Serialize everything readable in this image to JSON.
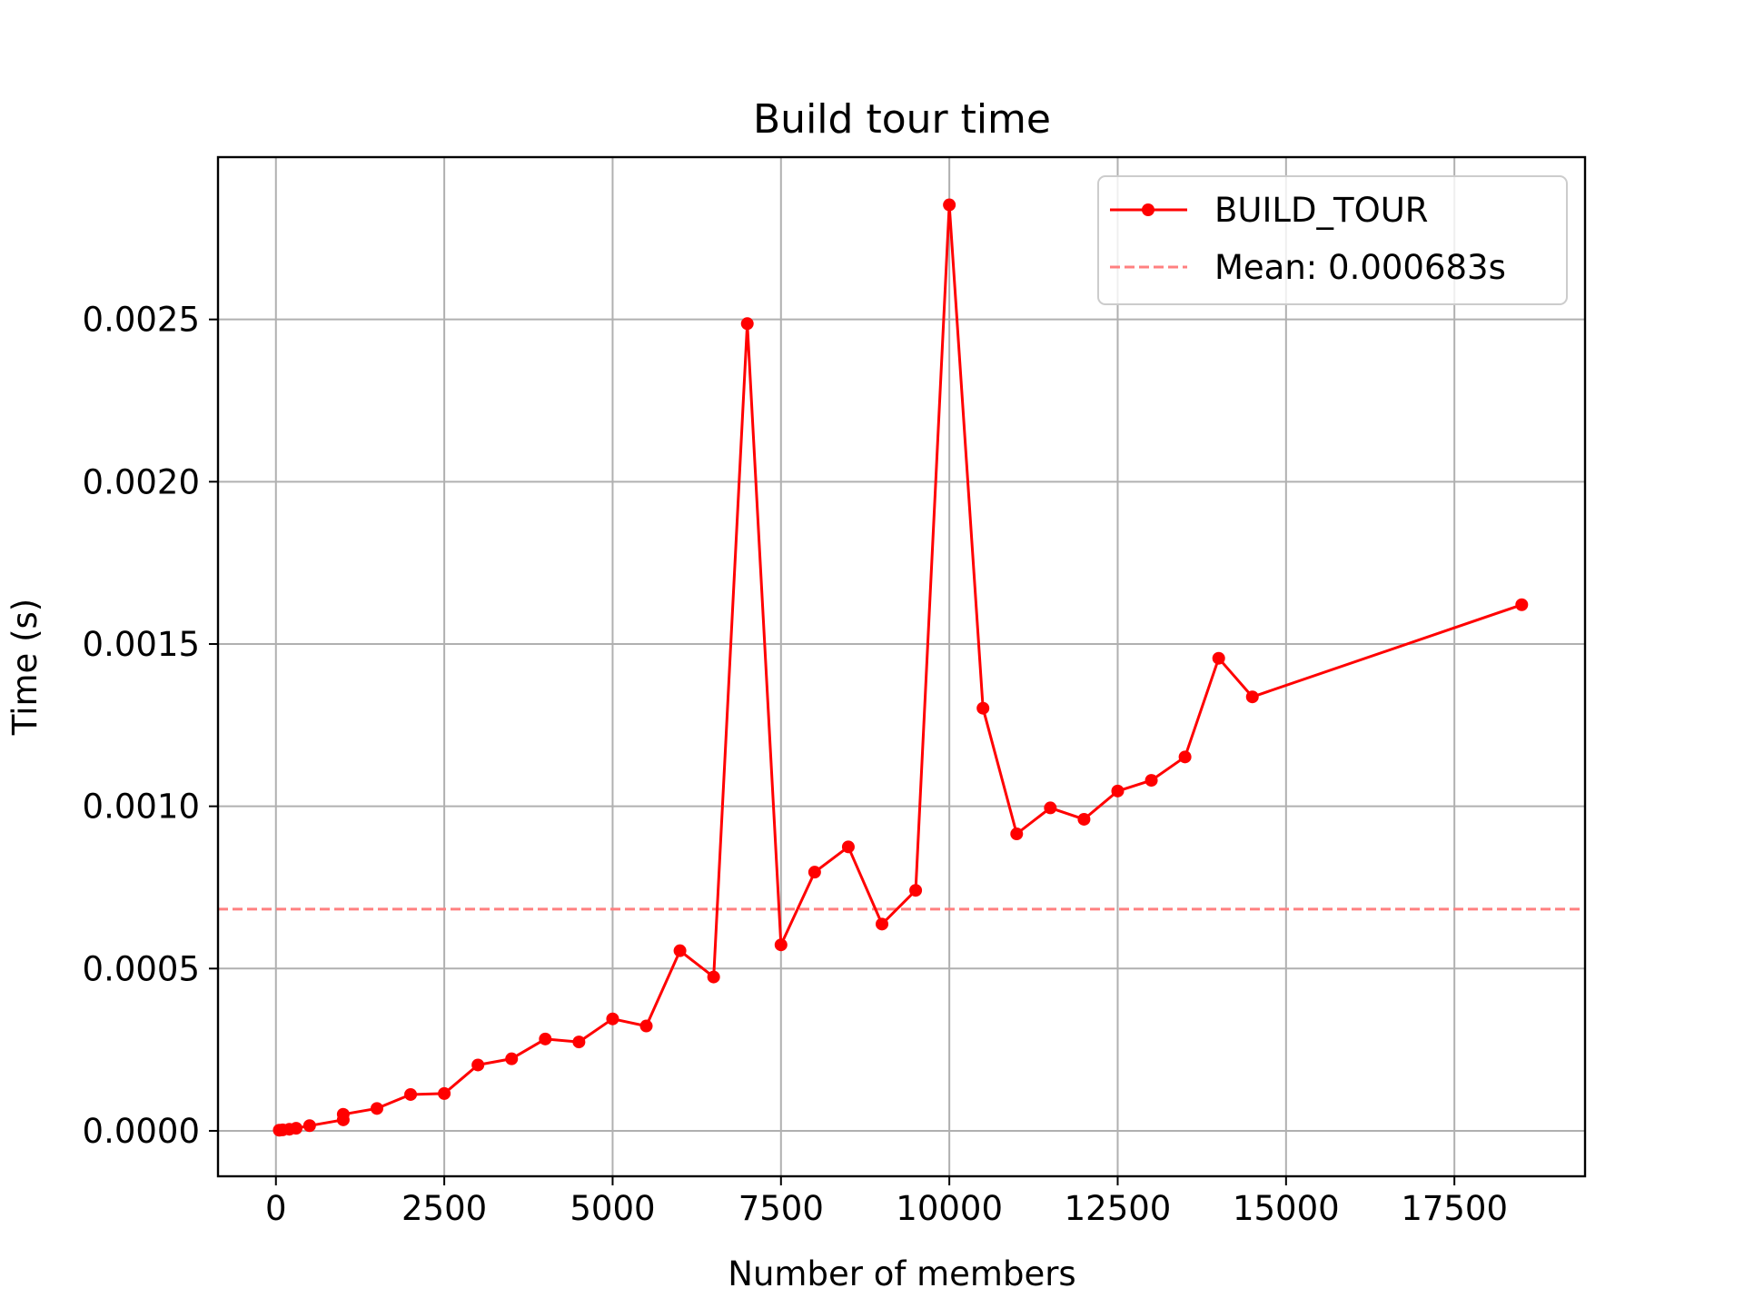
{
  "chart_data": {
    "type": "line",
    "title": "Build tour time",
    "xlabel": "Number of members",
    "ylabel": "Time (s)",
    "xlim": [
      -860,
      19440
    ],
    "ylim": [
      -0.00014,
      0.003
    ],
    "xticks": [
      0,
      2500,
      5000,
      7500,
      10000,
      12500,
      15000,
      17500
    ],
    "xtick_labels": [
      "0",
      "2500",
      "5000",
      "7500",
      "10000",
      "12500",
      "15000",
      "17500"
    ],
    "yticks": [
      0.0,
      0.0005,
      0.001,
      0.0015,
      0.002,
      0.0025
    ],
    "ytick_labels": [
      "0.0000",
      "0.0005",
      "0.0010",
      "0.0015",
      "0.0020",
      "0.0025"
    ],
    "grid": true,
    "legend_position": "top-right",
    "series": [
      {
        "name": "BUILD_TOUR",
        "color": "#ff0000",
        "style": "solid-with-markers",
        "x": [
          50,
          100,
          200,
          300,
          500,
          1000,
          1000,
          1500,
          2000,
          2500,
          3000,
          3500,
          4000,
          4500,
          5000,
          5500,
          6000,
          6500,
          7000,
          7500,
          8000,
          8500,
          9000,
          9500,
          10000,
          10500,
          11000,
          11500,
          12000,
          12500,
          13000,
          13500,
          14000,
          14500,
          18500
        ],
        "y": [
          2e-06,
          3e-06,
          5e-06,
          8e-06,
          1.6e-05,
          3.4e-05,
          5.1e-05,
          6.9e-05,
          0.000112,
          0.000115,
          0.000203,
          0.000222,
          0.000283,
          0.000274,
          0.000345,
          0.000323,
          0.000555,
          0.000474,
          0.002487,
          0.000573,
          0.000797,
          0.000875,
          0.000637,
          0.000741,
          0.002853,
          0.001302,
          0.000915,
          0.000995,
          0.00096,
          0.001047,
          0.00108,
          0.001152,
          0.001456,
          0.001337,
          0.001621
        ]
      },
      {
        "name": "Mean: 0.000683s",
        "color": "#ff8080",
        "style": "dashed",
        "y_constant": 0.000683
      }
    ]
  }
}
